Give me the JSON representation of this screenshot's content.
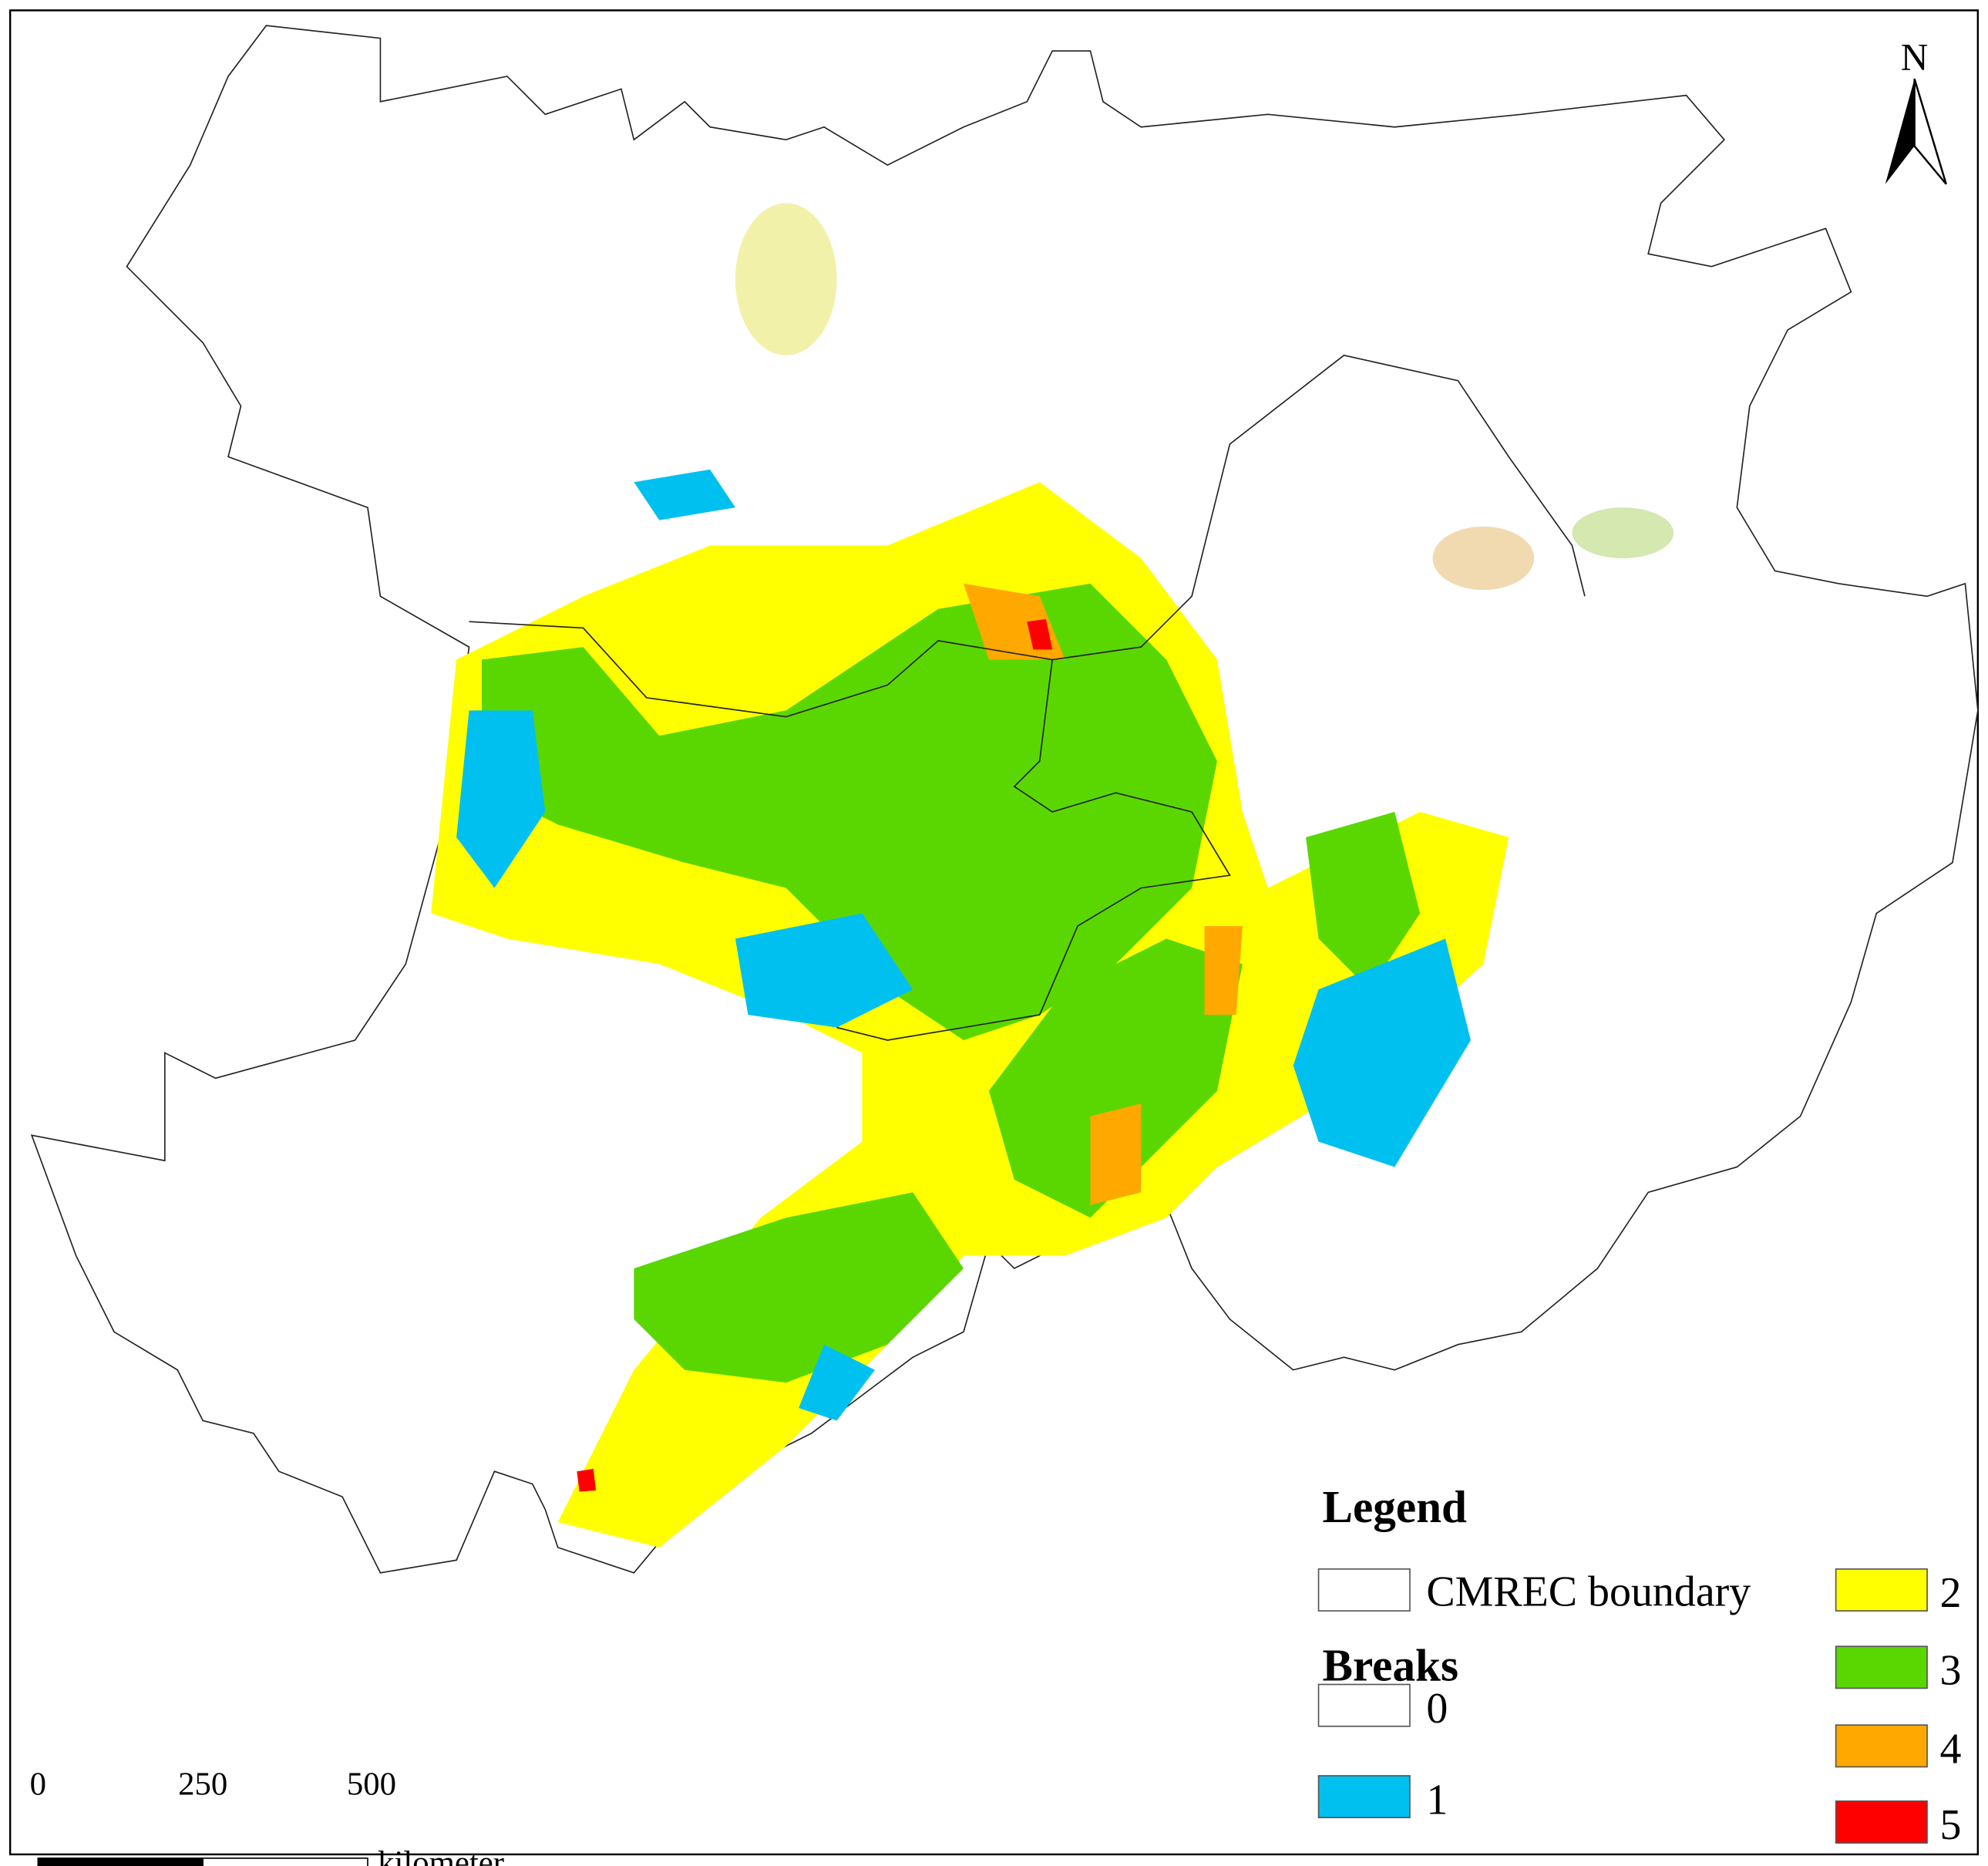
{
  "north": "N",
  "legend": {
    "title": "Legend",
    "boundary": "CMREC boundary",
    "breaks_title": "Breaks",
    "classes": [
      {
        "label": "0",
        "color": "#ffffff"
      },
      {
        "label": "1",
        "color": "#00c0f0"
      },
      {
        "label": "2",
        "color": "#ffff00"
      },
      {
        "label": "3",
        "color": "#5ad700"
      },
      {
        "label": "4",
        "color": "#ffa800"
      },
      {
        "label": "5",
        "color": "#ff0000"
      }
    ]
  },
  "scale_bar": {
    "labels": [
      "0",
      "250",
      "500"
    ],
    "unit": "kilometer"
  }
}
